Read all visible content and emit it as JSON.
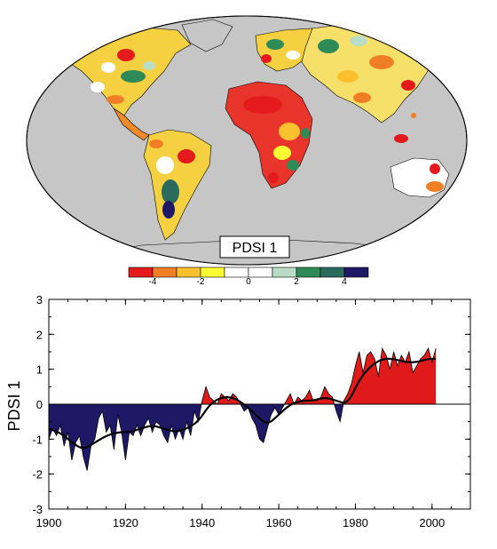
{
  "colors": {
    "negative_fill": "#e01a1a",
    "positive_fill": "#1e1866",
    "ocean": "#c6c6c6",
    "colorbar": [
      "#e41a1c",
      "#f07e25",
      "#fbc02d",
      "#ffff33",
      "#ffffff",
      "#ffffff",
      "#b9dcc6",
      "#2e8b57",
      "#2a6b5e",
      "#1e1866"
    ]
  },
  "map": {
    "title": "PDSI 1",
    "colorbar_ticks": [
      "-4",
      "-2",
      "0",
      "2",
      "4"
    ]
  },
  "chart_data": {
    "type": "area",
    "ylabel": "PDSI 1",
    "xlabel": "",
    "xlim": [
      1900,
      2010
    ],
    "ylim": [
      -3,
      3
    ],
    "x_ticks": [
      1900,
      1920,
      1940,
      1960,
      1980,
      2000
    ],
    "y_ticks": [
      -3,
      -2,
      -1,
      0,
      1,
      2,
      3
    ],
    "series": [
      {
        "kind": "annual",
        "x": [
          1900,
          1901,
          1902,
          1903,
          1904,
          1905,
          1906,
          1907,
          1908,
          1909,
          1910,
          1911,
          1912,
          1913,
          1914,
          1915,
          1916,
          1917,
          1918,
          1919,
          1920,
          1921,
          1922,
          1923,
          1924,
          1925,
          1926,
          1927,
          1928,
          1929,
          1930,
          1931,
          1932,
          1933,
          1934,
          1935,
          1936,
          1937,
          1938,
          1939,
          1940,
          1941,
          1942,
          1943,
          1944,
          1945,
          1946,
          1947,
          1948,
          1949,
          1950,
          1951,
          1952,
          1953,
          1954,
          1955,
          1956,
          1957,
          1958,
          1959,
          1960,
          1961,
          1962,
          1963,
          1964,
          1965,
          1966,
          1967,
          1968,
          1969,
          1970,
          1971,
          1972,
          1973,
          1974,
          1975,
          1976,
          1977,
          1978,
          1979,
          1980,
          1981,
          1982,
          1983,
          1984,
          1985,
          1986,
          1987,
          1988,
          1989,
          1990,
          1991,
          1992,
          1993,
          1994,
          1995,
          1996,
          1997,
          1998,
          1999,
          2000,
          2001
        ],
        "values": [
          -1.0,
          -0.7,
          -0.9,
          -0.6,
          -1.2,
          -0.8,
          -1.6,
          -1.1,
          -0.9,
          -1.5,
          -1.9,
          -1.2,
          -1.0,
          -0.4,
          -0.2,
          -0.8,
          -0.6,
          -1.3,
          -0.3,
          -0.8,
          -1.6,
          -0.8,
          -0.9,
          -0.6,
          -0.9,
          -0.6,
          -0.4,
          -0.8,
          -0.5,
          -0.6,
          -0.9,
          -1.1,
          -0.6,
          -1.0,
          -0.7,
          -1.0,
          -0.5,
          -0.9,
          -0.2,
          -0.5,
          0.1,
          0.5,
          0.2,
          0.1,
          0.0,
          0.3,
          0.2,
          0.1,
          0.3,
          0.2,
          0.0,
          -0.2,
          -0.1,
          -0.4,
          -0.6,
          -1.0,
          -1.1,
          -0.7,
          -0.3,
          -0.1,
          -0.3,
          -0.1,
          0.1,
          0.3,
          0.0,
          0.2,
          0.1,
          0.2,
          0.4,
          0.1,
          0.1,
          0.2,
          0.5,
          0.3,
          0.2,
          -0.2,
          -0.5,
          0.1,
          0.3,
          0.6,
          1.1,
          1.5,
          0.9,
          1.4,
          1.5,
          1.3,
          0.8,
          1.6,
          1.4,
          1.0,
          1.5,
          1.1,
          1.4,
          1.2,
          1.5,
          0.9,
          1.1,
          1.3,
          1.4,
          1.6,
          1.2,
          1.6
        ]
      },
      {
        "kind": "smoothed",
        "x": [
          1900,
          1903,
          1906,
          1909,
          1912,
          1915,
          1918,
          1921,
          1924,
          1927,
          1930,
          1933,
          1936,
          1939,
          1942,
          1945,
          1948,
          1951,
          1954,
          1957,
          1960,
          1963,
          1966,
          1969,
          1972,
          1975,
          1978,
          1981,
          1984,
          1987,
          1990,
          1993,
          1996,
          1999,
          2001
        ],
        "values": [
          -0.7,
          -0.8,
          -1.1,
          -1.3,
          -1.1,
          -0.9,
          -0.8,
          -0.8,
          -0.7,
          -0.6,
          -0.7,
          -0.8,
          -0.7,
          -0.5,
          0.0,
          0.2,
          0.2,
          0.0,
          -0.3,
          -0.6,
          -0.3,
          0.0,
          0.1,
          0.1,
          0.2,
          0.1,
          0.0,
          0.7,
          1.1,
          1.3,
          1.3,
          1.2,
          1.2,
          1.3,
          1.3
        ]
      }
    ]
  }
}
